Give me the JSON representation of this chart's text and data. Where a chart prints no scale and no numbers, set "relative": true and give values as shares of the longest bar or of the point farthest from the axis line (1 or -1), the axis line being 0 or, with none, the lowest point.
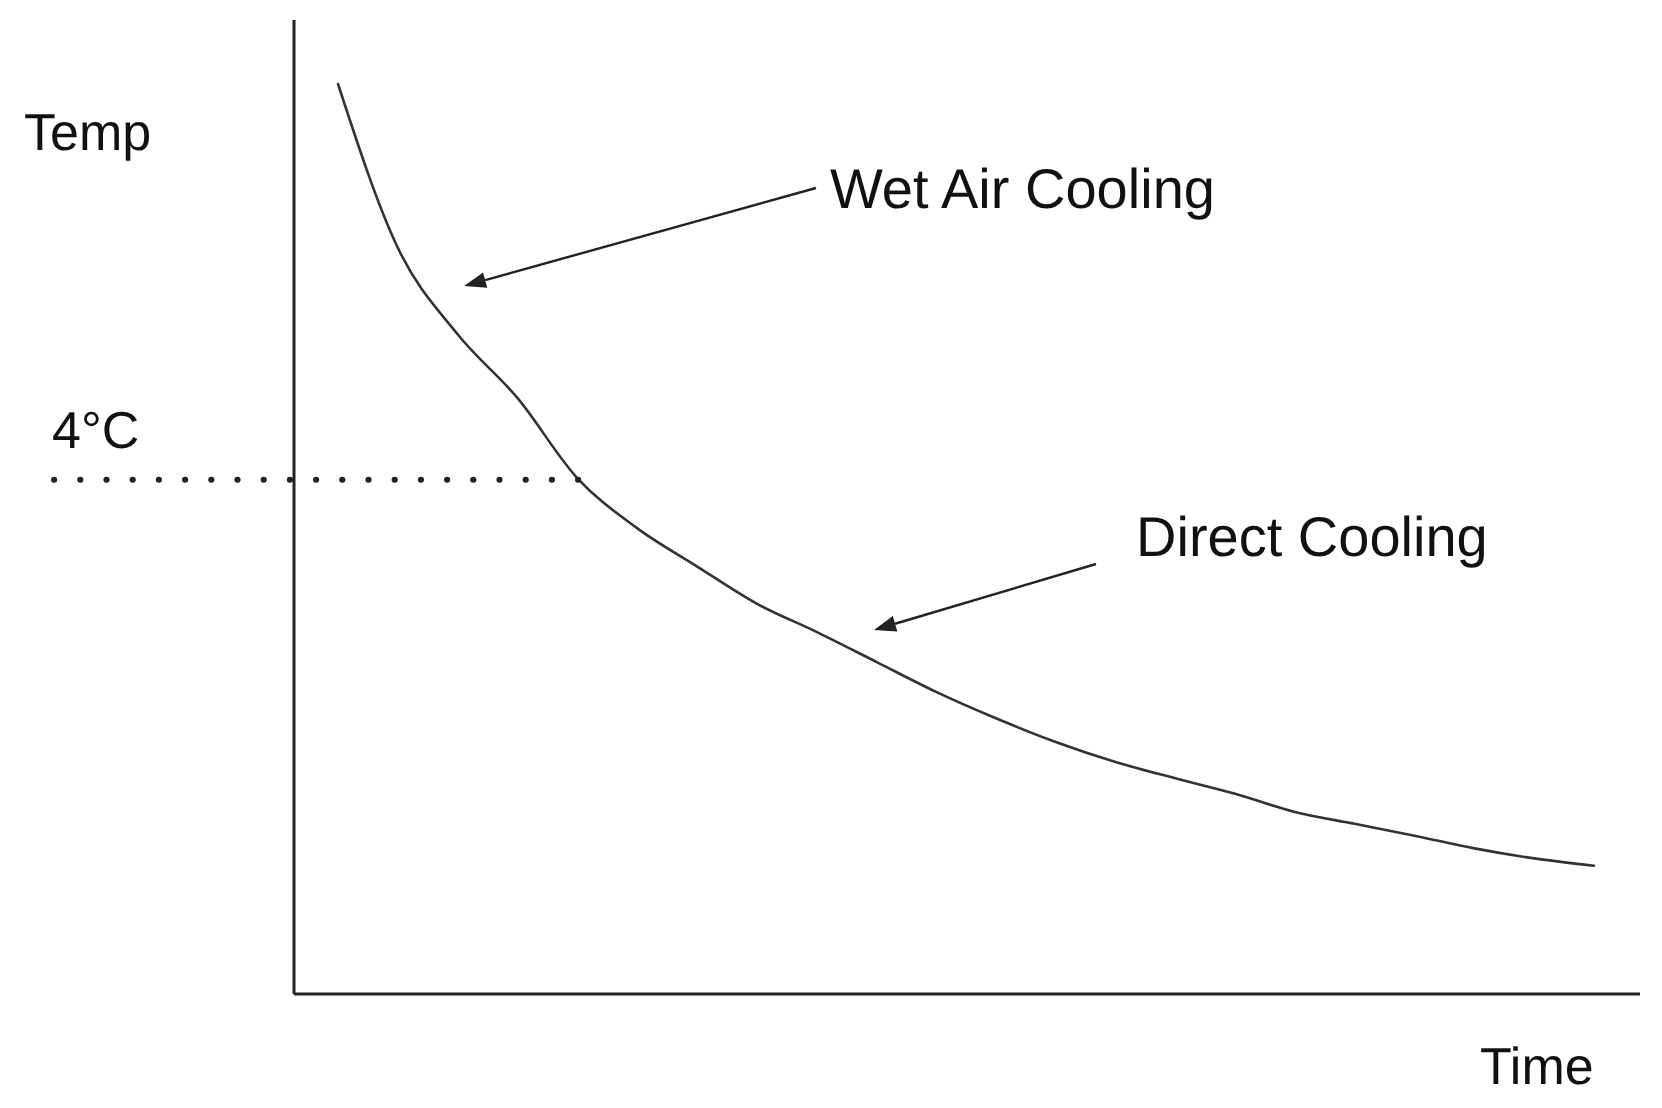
{
  "chart_data": {
    "type": "line",
    "relative": true,
    "ylabel": "Temp",
    "xlabel": "Time",
    "categories": [
      null,
      null,
      null,
      null,
      null,
      null,
      null,
      null,
      null,
      null,
      null,
      null,
      null,
      null,
      null,
      null,
      null,
      null,
      null,
      null,
      null,
      null
    ],
    "series": [
      {
        "color": "#333333",
        "values": [
          1.0,
          0.82,
          0.725,
          0.655,
          0.567,
          0.512,
          0.47,
          0.429,
          0.398,
          0.365,
          0.332,
          0.303,
          0.277,
          0.255,
          0.237,
          0.22,
          0.2,
          0.187,
          0.174,
          0.16,
          0.149,
          0.141
        ]
      }
    ],
    "ref_lines": [
      {
        "axis": "y",
        "value": 0.565,
        "label": "4°C",
        "line_style": "dotted",
        "color": "#222222"
      }
    ],
    "annotations": [
      "Wet Air Cooling",
      "Direct Cooling"
    ]
  }
}
